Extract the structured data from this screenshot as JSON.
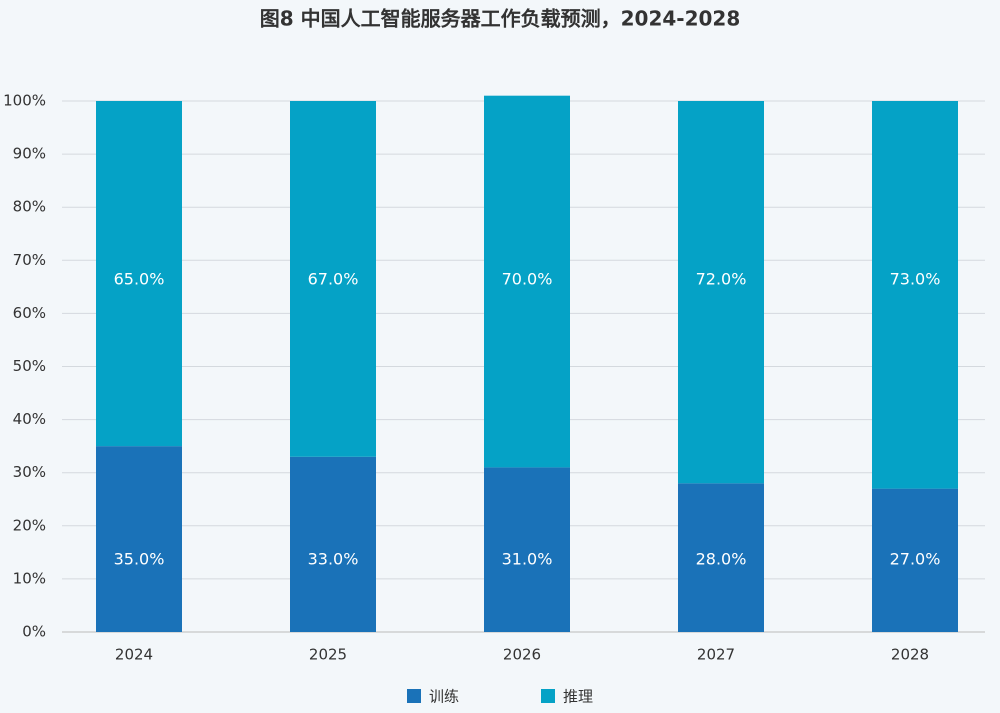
{
  "chart_data": {
    "type": "stacked_bar",
    "title": "图8 中国人工智能服务器工作负载预测，2024-2028",
    "categories": [
      "2024",
      "2025",
      "2026",
      "2027",
      "2028"
    ],
    "series": [
      {
        "name": "训练",
        "color": "#1a72b8",
        "values": [
          35,
          33,
          31,
          28,
          27
        ],
        "value_labels": [
          "35.0%",
          "33.0%",
          "31.0%",
          "28.0%",
          "27.0%"
        ]
      },
      {
        "name": "推理",
        "color": "#05a2c6",
        "values": [
          65,
          67,
          70,
          72,
          73
        ],
        "value_labels": [
          "65.0%",
          "67.0%",
          "70.0%",
          "72.0%",
          "73.0%"
        ]
      }
    ],
    "ylim": [
      0,
      100
    ],
    "yticks": [
      {
        "value": 0,
        "label": "0%"
      },
      {
        "value": 10,
        "label": "10%"
      },
      {
        "value": 20,
        "label": "20%"
      },
      {
        "value": 30,
        "label": "30%"
      },
      {
        "value": 40,
        "label": "40%"
      },
      {
        "value": 50,
        "label": "50%"
      },
      {
        "value": 60,
        "label": "60%"
      },
      {
        "value": 70,
        "label": "70%"
      },
      {
        "value": 80,
        "label": "80%"
      },
      {
        "value": 90,
        "label": "90%"
      },
      {
        "value": 100,
        "label": "100%"
      }
    ],
    "grid": true,
    "legend": "bottom"
  }
}
